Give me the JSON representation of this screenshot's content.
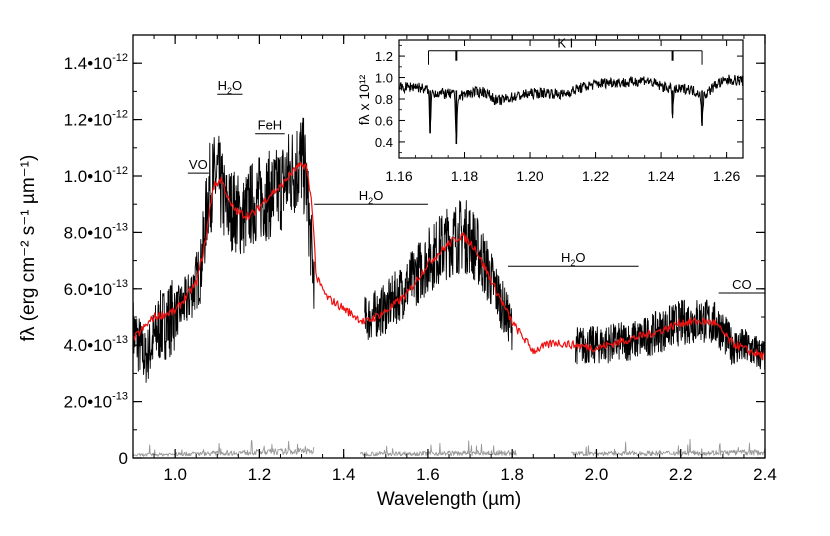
{
  "chart_data": [
    {
      "id": "main",
      "type": "line",
      "xlabel": "Wavelength (µm)",
      "ylabel": "fλ (erg cm⁻² s⁻¹ µm⁻¹)",
      "xlim": [
        0.9,
        2.4
      ],
      "ylim": [
        0,
        1.5e-12
      ],
      "x_ticks": [
        {
          "v": 1.0,
          "label": "1.0"
        },
        {
          "v": 1.2,
          "label": "1.2"
        },
        {
          "v": 1.4,
          "label": "1.4"
        },
        {
          "v": 1.6,
          "label": "1.6"
        },
        {
          "v": 1.8,
          "label": "1.8"
        },
        {
          "v": 2.0,
          "label": "2.0"
        },
        {
          "v": 2.2,
          "label": "2.2"
        },
        {
          "v": 2.4,
          "label": "2.4"
        }
      ],
      "y_ticks": [
        {
          "v": 0,
          "mant": "0",
          "exp": ""
        },
        {
          "v": 2e-13,
          "mant": "2.0•10",
          "exp": "-13"
        },
        {
          "v": 4e-13,
          "mant": "4.0•10",
          "exp": "-13"
        },
        {
          "v": 6e-13,
          "mant": "6.0•10",
          "exp": "-13"
        },
        {
          "v": 8e-13,
          "mant": "8.0•10",
          "exp": "-13"
        },
        {
          "v": 1e-12,
          "mant": "1.0•10",
          "exp": "-12"
        },
        {
          "v": 1.2e-12,
          "mant": "1.2•10",
          "exp": "-12"
        },
        {
          "v": 1.4e-12,
          "mant": "1.4•10",
          "exp": "-12"
        }
      ],
      "grid": false,
      "series": [
        {
          "role": "observed spectrum",
          "color": "#000000",
          "segments": [
            [
              [
                0.9,
                4.5e-13
              ],
              [
                0.93,
                3.5e-13
              ],
              [
                0.96,
                4.6e-13
              ],
              [
                1.0,
                5.1e-13
              ],
              [
                1.03,
                5.6e-13
              ],
              [
                1.06,
                6.6e-13
              ],
              [
                1.08,
                9.5e-13
              ],
              [
                1.1,
                1e-12
              ],
              [
                1.12,
                8.9e-13
              ],
              [
                1.14,
                8.8e-13
              ],
              [
                1.16,
                8.5e-13
              ],
              [
                1.18,
                9e-13
              ],
              [
                1.2,
                9.2e-13
              ],
              [
                1.22,
                9.3e-13
              ],
              [
                1.24,
                9.4e-13
              ],
              [
                1.26,
                9.8e-13
              ],
              [
                1.28,
                1.02e-12
              ],
              [
                1.3,
                1.06e-12
              ],
              [
                1.31,
                1e-12
              ],
              [
                1.32,
                8e-13
              ],
              [
                1.33,
                6.2e-13
              ]
            ],
            [
              [
                1.45,
                4.9e-13
              ],
              [
                1.5,
                5.3e-13
              ],
              [
                1.55,
                6.1e-13
              ],
              [
                1.6,
                7e-13
              ],
              [
                1.65,
                7.7e-13
              ],
              [
                1.68,
                7.9e-13
              ],
              [
                1.7,
                7.8e-13
              ],
              [
                1.73,
                7e-13
              ],
              [
                1.76,
                6e-13
              ],
              [
                1.8,
                4.6e-13
              ]
            ],
            [
              [
                1.95,
                4e-13
              ],
              [
                2.0,
                4e-13
              ],
              [
                2.05,
                4.1e-13
              ],
              [
                2.1,
                4.2e-13
              ],
              [
                2.15,
                4.5e-13
              ],
              [
                2.2,
                4.8e-13
              ],
              [
                2.25,
                4.9e-13
              ],
              [
                2.29,
                4.7e-13
              ],
              [
                2.32,
                4e-13
              ],
              [
                2.36,
                3.9e-13
              ],
              [
                2.4,
                3.6e-13
              ]
            ]
          ]
        },
        {
          "role": "template spectrum",
          "color": "#ee1111",
          "points": [
            [
              0.9,
              4.2e-13
            ],
            [
              0.95,
              5e-13
            ],
            [
              1.0,
              5.2e-13
            ],
            [
              1.05,
              6.2e-13
            ],
            [
              1.07,
              7.5e-13
            ],
            [
              1.09,
              9.6e-13
            ],
            [
              1.11,
              9.9e-13
            ],
            [
              1.13,
              9e-13
            ],
            [
              1.15,
              8.7e-13
            ],
            [
              1.17,
              8.6e-13
            ],
            [
              1.19,
              8.7e-13
            ],
            [
              1.21,
              9.1e-13
            ],
            [
              1.23,
              9.4e-13
            ],
            [
              1.25,
              9.6e-13
            ],
            [
              1.27,
              1e-12
            ],
            [
              1.29,
              1.03e-12
            ],
            [
              1.31,
              1.04e-12
            ],
            [
              1.325,
              9e-13
            ],
            [
              1.335,
              6.4e-13
            ],
            [
              1.36,
              5.7e-13
            ],
            [
              1.4,
              5.3e-13
            ],
            [
              1.45,
              4.8e-13
            ],
            [
              1.5,
              5.2e-13
            ],
            [
              1.55,
              5.8e-13
            ],
            [
              1.6,
              6.9e-13
            ],
            [
              1.65,
              7.6e-13
            ],
            [
              1.68,
              7.9e-13
            ],
            [
              1.71,
              7.5e-13
            ],
            [
              1.75,
              6.3e-13
            ],
            [
              1.8,
              4.8e-13
            ],
            [
              1.85,
              3.8e-13
            ],
            [
              1.9,
              4.1e-13
            ],
            [
              1.95,
              4e-13
            ],
            [
              2.0,
              3.9e-13
            ],
            [
              2.05,
              4.1e-13
            ],
            [
              2.1,
              4.3e-13
            ],
            [
              2.15,
              4.5e-13
            ],
            [
              2.2,
              4.8e-13
            ],
            [
              2.25,
              4.85e-13
            ],
            [
              2.28,
              4.8e-13
            ],
            [
              2.32,
              4.1e-13
            ],
            [
              2.36,
              3.8e-13
            ],
            [
              2.4,
              3.6e-13
            ]
          ]
        },
        {
          "role": "noise spectrum",
          "color": "#9a9a9a",
          "segments": [
            [
              [
                0.9,
                1e-14
              ],
              [
                1.33,
                2.5e-14
              ]
            ],
            [
              [
                1.44,
                1.5e-14
              ],
              [
                1.81,
                1.8e-14
              ]
            ],
            [
              [
                1.94,
                1.5e-14
              ],
              [
                2.4,
                2e-14
              ]
            ]
          ]
        }
      ],
      "annotations": [
        {
          "label": "VO",
          "x": [
            1.03,
            1.08
          ],
          "y": 1.01e-12
        },
        {
          "label": "H",
          "sub": "2",
          "tail": "O",
          "x": [
            1.1,
            1.16
          ],
          "y": 1.29e-12
        },
        {
          "label": "FeH",
          "x": [
            1.19,
            1.26
          ],
          "y": 1.15e-12
        },
        {
          "label": "H",
          "sub": "2",
          "tail": "O",
          "x": [
            1.33,
            1.6
          ],
          "y": 9e-13
        },
        {
          "label": "H",
          "sub": "2",
          "tail": "O",
          "x": [
            1.79,
            2.1
          ],
          "y": 6.8e-13
        },
        {
          "label": "CO",
          "x": [
            2.29,
            2.4
          ],
          "y": 5.85e-13
        }
      ]
    },
    {
      "id": "inset",
      "type": "line",
      "ylabel": "fλ x 10¹²",
      "xlim": [
        1.16,
        1.265
      ],
      "ylim": [
        0.25,
        1.35
      ],
      "x_ticks": [
        {
          "v": 1.16,
          "label": "1.16"
        },
        {
          "v": 1.18,
          "label": "1.18"
        },
        {
          "v": 1.2,
          "label": "1.20"
        },
        {
          "v": 1.22,
          "label": "1.22"
        },
        {
          "v": 1.24,
          "label": "1.24"
        },
        {
          "v": 1.26,
          "label": "1.26"
        }
      ],
      "y_ticks": [
        {
          "v": 0.4,
          "label": "0.4"
        },
        {
          "v": 0.6,
          "label": "0.6"
        },
        {
          "v": 0.8,
          "label": "0.8"
        },
        {
          "v": 1.0,
          "label": "1.0"
        },
        {
          "v": 1.2,
          "label": "1.2"
        }
      ],
      "series": [
        {
          "role": "observed spectrum",
          "color": "#000000",
          "points": [
            [
              1.16,
              0.9
            ],
            [
              1.165,
              0.92
            ],
            [
              1.169,
              0.88
            ],
            [
              1.1695,
              0.48
            ],
            [
              1.17,
              0.86
            ],
            [
              1.174,
              0.85
            ],
            [
              1.177,
              0.84
            ],
            [
              1.1775,
              0.38
            ],
            [
              1.178,
              0.82
            ],
            [
              1.182,
              0.86
            ],
            [
              1.186,
              0.87
            ],
            [
              1.19,
              0.78
            ],
            [
              1.195,
              0.82
            ],
            [
              1.2,
              0.85
            ],
            [
              1.205,
              0.86
            ],
            [
              1.21,
              0.84
            ],
            [
              1.215,
              0.9
            ],
            [
              1.22,
              0.94
            ],
            [
              1.225,
              0.96
            ],
            [
              1.23,
              0.95
            ],
            [
              1.235,
              0.98
            ],
            [
              1.24,
              0.92
            ],
            [
              1.243,
              0.9
            ],
            [
              1.2435,
              0.66
            ],
            [
              1.244,
              0.88
            ],
            [
              1.248,
              0.9
            ],
            [
              1.252,
              0.85
            ],
            [
              1.2525,
              0.55
            ],
            [
              1.253,
              0.83
            ],
            [
              1.257,
              0.94
            ],
            [
              1.261,
              0.98
            ],
            [
              1.265,
              0.97
            ]
          ]
        }
      ],
      "annotation": {
        "label": "K I",
        "x": [
          1.169,
          1.2525
        ],
        "y": 1.25,
        "ticks": [
          1.169,
          1.1775,
          1.2435,
          1.2525
        ]
      }
    }
  ]
}
